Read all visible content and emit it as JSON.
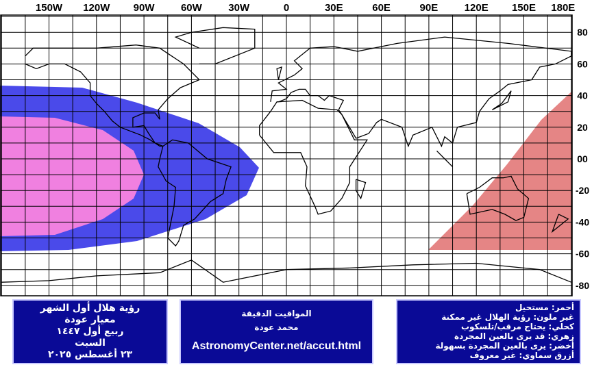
{
  "map": {
    "lon_labels": [
      "150W",
      "120W",
      "90W",
      "60W",
      "30W",
      "0",
      "30E",
      "60E",
      "90E",
      "120E",
      "150E",
      "180E"
    ],
    "lat_labels": [
      "80",
      "60",
      "40",
      "20",
      "00",
      "-20",
      "-40",
      "-60",
      "-80"
    ]
  },
  "boxes": [
    {
      "lines": [
        "رؤية هلال أول الشهر",
        "معيار عودة",
        "ربيع أول ١٤٤٧",
        "السبت",
        "٢٣ أغسطس ٢٠٢٥"
      ]
    },
    {
      "lines": [
        "المواقيت الدقيقة",
        "محمد عودة",
        "AstronomyCenter.net/accut.html"
      ]
    },
    {
      "lines": [
        "أحمر: مستحيل",
        "غير ملون: رؤية الهلال غير ممكنة",
        "كحلي: يحتاج مرقب/تلسكوب",
        "زهري: قد يرى بالعين المجردة",
        "أخضر: يرى بالعين المجردة بسهولة",
        "أزرق سماوي: غير معروف"
      ]
    }
  ]
}
